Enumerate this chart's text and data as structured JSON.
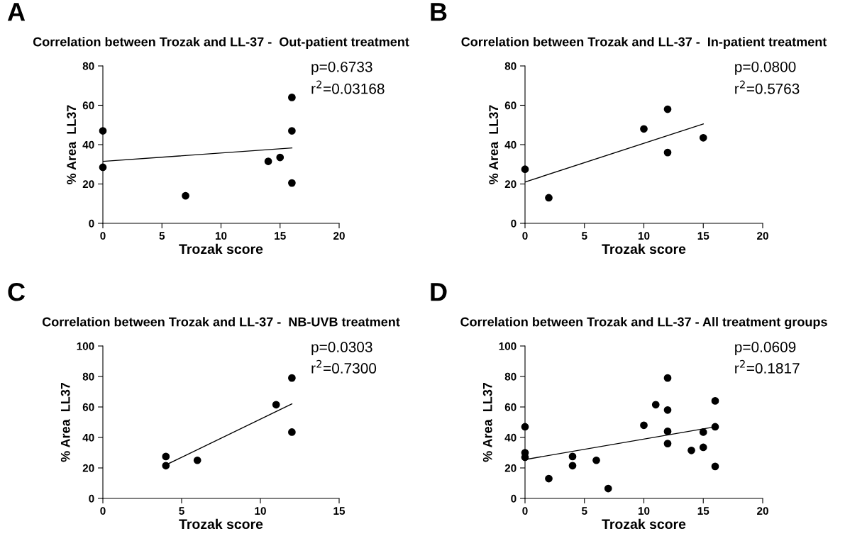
{
  "chart_data": [
    {
      "type": "scatter",
      "title": "Correlation between Trozak and LL-37 -  Out-patient treatment",
      "xlabel": "Trozak score",
      "ylabel": "% Area  LL37",
      "xlim": [
        0,
        20
      ],
      "xticks": [
        0,
        5,
        10,
        15,
        20
      ],
      "ylim": [
        0,
        80
      ],
      "yticks": [
        0,
        20,
        40,
        60,
        80
      ],
      "annotations": [
        "A",
        "p=0.6733",
        "r$^{2}$=0.03168"
      ],
      "series": [
        {
          "color": "#000000",
          "marker": "circle",
          "x": [
            0,
            0,
            7,
            14,
            15,
            16,
            16,
            16
          ],
          "values": [
            47,
            28.5,
            14,
            31.5,
            33.5,
            64,
            47,
            20.5
          ]
        },
        {
          "type": "line",
          "marker": "none",
          "color": "#000000",
          "x": [
            0,
            16
          ],
          "values": [
            31.5,
            38.3
          ]
        }
      ]
    },
    {
      "type": "scatter",
      "title": "Correlation between Trozak and LL-37 -  In-patient treatment",
      "xlabel": "Trozak score",
      "ylabel": "% Area  LL37",
      "xlim": [
        0,
        20
      ],
      "xticks": [
        0,
        5,
        10,
        15,
        20
      ],
      "ylim": [
        0,
        80
      ],
      "yticks": [
        0,
        20,
        40,
        60,
        80
      ],
      "annotations": [
        "B",
        "p=0.0800",
        "r$^{2}$=0.5763"
      ],
      "series": [
        {
          "color": "#000000",
          "marker": "circle",
          "x": [
            0,
            2,
            10,
            12,
            12,
            15
          ],
          "values": [
            27.5,
            13,
            48,
            58,
            36,
            43.5
          ]
        },
        {
          "type": "line",
          "marker": "none",
          "color": "#000000",
          "x": [
            0,
            15
          ],
          "values": [
            21,
            50.5
          ]
        }
      ]
    },
    {
      "type": "scatter",
      "title": "Correlation between Trozak and LL-37 -  NB-UVB treatment",
      "xlabel": "Trozak score",
      "ylabel": "% Area  LL37",
      "xlim": [
        0,
        15
      ],
      "xticks": [
        0,
        5,
        10,
        15
      ],
      "ylim": [
        0,
        100
      ],
      "yticks": [
        0,
        20,
        40,
        60,
        80,
        100
      ],
      "annotations": [
        "C",
        "p=0.0303",
        "r$^{2}$=0.7300"
      ],
      "series": [
        {
          "color": "#000000",
          "marker": "circle",
          "x": [
            4,
            4,
            6,
            11,
            12,
            12
          ],
          "values": [
            27.5,
            21.5,
            25,
            61.5,
            79,
            43.5
          ]
        },
        {
          "type": "line",
          "marker": "none",
          "color": "#000000",
          "x": [
            4,
            12
          ],
          "values": [
            22,
            62
          ]
        }
      ]
    },
    {
      "type": "scatter",
      "title": "Correlation between Trozak and LL-37 - All treatment groups",
      "xlabel": "Trozak score",
      "ylabel": "% Area  LL37",
      "xlim": [
        0,
        20
      ],
      "xticks": [
        0,
        5,
        10,
        15,
        20
      ],
      "ylim": [
        0,
        100
      ],
      "yticks": [
        0,
        20,
        40,
        60,
        80,
        100
      ],
      "annotations": [
        "D",
        "p=0.0609",
        "r$^{2}$=0.1817"
      ],
      "series": [
        {
          "color": "#000000",
          "marker": "circle",
          "x": [
            0,
            0,
            0,
            2,
            4,
            4,
            6,
            7,
            10,
            11,
            12,
            12,
            12,
            12,
            14,
            15,
            15,
            16,
            16,
            16
          ],
          "values": [
            47,
            30,
            27,
            13,
            27.5,
            21.5,
            25,
            6.5,
            48,
            61.5,
            79,
            58,
            44,
            36,
            31.5,
            43.5,
            33.5,
            64,
            47,
            21
          ]
        },
        {
          "type": "line",
          "marker": "none",
          "color": "#000000",
          "x": [
            0,
            16
          ],
          "values": [
            25.5,
            47
          ]
        }
      ]
    }
  ]
}
